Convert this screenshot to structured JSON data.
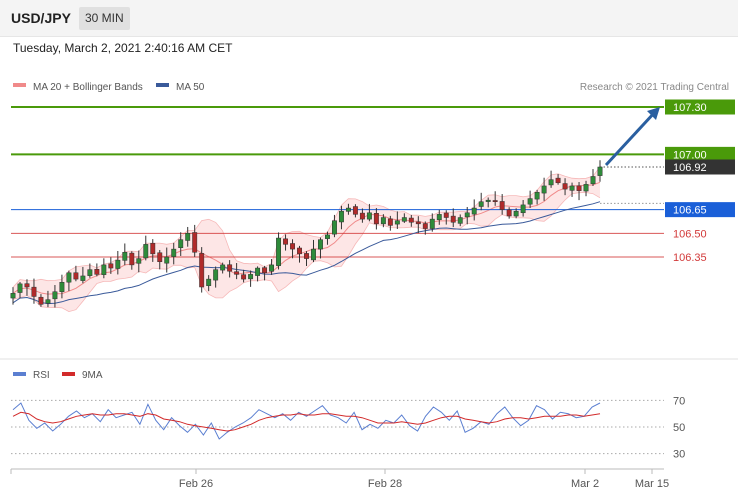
{
  "header": {
    "pair": "USD/JPY",
    "timeframe": "30 MIN"
  },
  "datetime": "Tuesday, March 2, 2021 2:40:16 AM CET",
  "credit": "Research © 2021 Trading Central",
  "legend": {
    "price": [
      {
        "label": "MA 20 + Bollinger Bands",
        "color": "#f08a8a"
      },
      {
        "label": "MA 50",
        "color": "#3a5a9a"
      }
    ],
    "rsi": [
      {
        "label": "RSI",
        "color": "#5b7fd1"
      },
      {
        "label": "9MA",
        "color": "#d22a2a"
      }
    ]
  },
  "chart_data": [
    {
      "type": "candlestick",
      "ylim": [
        106.0,
        107.4
      ],
      "levels": [
        {
          "value": 107.3,
          "label": "107.30",
          "kind": "resistance",
          "color": "#4a9a0a"
        },
        {
          "value": 107.0,
          "label": "107.00",
          "kind": "resistance",
          "color": "#4a9a0a"
        },
        {
          "value": 106.92,
          "label": "106.92",
          "kind": "last-price",
          "color": "#333333"
        },
        {
          "value": 106.65,
          "label": "106.65",
          "kind": "pivot",
          "color": "#1a5fd8"
        },
        {
          "value": 106.5,
          "label": "106.50",
          "kind": "support",
          "color": "#d23a3a"
        },
        {
          "value": 106.35,
          "label": "106.35",
          "kind": "support",
          "color": "#d23a3a"
        }
      ],
      "projection": {
        "from": 106.92,
        "to": 107.3
      },
      "x_ticks": [
        "Feb 26",
        "Feb 28",
        "Mar 2",
        "Mar 15"
      ],
      "close_path": [
        106.12,
        106.18,
        106.16,
        106.1,
        106.05,
        106.08,
        106.13,
        106.19,
        106.25,
        106.21,
        106.23,
        106.27,
        106.24,
        106.3,
        106.28,
        106.33,
        106.38,
        106.3,
        106.34,
        106.43,
        106.37,
        106.32,
        106.35,
        106.4,
        106.46,
        106.5,
        106.38,
        106.16,
        106.21,
        106.27,
        106.3,
        106.26,
        106.24,
        106.21,
        106.24,
        106.28,
        106.25,
        106.3,
        106.47,
        106.43,
        106.4,
        106.37,
        106.34,
        106.4,
        106.46,
        106.49,
        106.58,
        106.64,
        106.66,
        106.62,
        106.59,
        106.63,
        106.56,
        106.6,
        106.55,
        106.58,
        106.6,
        106.57,
        106.56,
        106.53,
        106.59,
        106.62,
        106.6,
        106.57,
        106.6,
        106.63,
        106.66,
        106.7,
        106.71,
        106.7,
        106.65,
        106.61,
        106.64,
        106.68,
        106.72,
        106.76,
        106.8,
        106.84,
        106.82,
        106.78,
        106.8,
        106.77,
        106.81,
        106.86,
        106.92
      ]
    },
    {
      "type": "line",
      "series": [
        {
          "name": "RSI",
          "values": [
            63,
            68,
            55,
            49,
            53,
            47,
            52,
            58,
            62,
            57,
            60,
            54,
            63,
            57,
            59,
            61,
            52,
            67,
            55,
            48,
            57,
            51,
            46,
            52,
            44,
            53,
            41,
            46,
            50,
            53,
            57,
            63,
            60,
            57,
            60,
            55,
            61,
            58,
            62,
            66,
            59,
            57,
            53,
            61,
            48,
            52,
            49,
            55,
            53,
            59,
            51,
            47,
            58,
            65,
            61,
            55,
            62,
            46,
            49,
            54,
            52,
            60,
            65,
            57,
            51,
            55,
            66,
            63,
            56,
            61,
            60,
            57,
            58,
            65,
            68
          ]
        },
        {
          "name": "9MA",
          "values": [
            58,
            61,
            60,
            56,
            54,
            53,
            54,
            56,
            58,
            59,
            60,
            59,
            59,
            60,
            60,
            59,
            58,
            60,
            59,
            56,
            55,
            54,
            52,
            51,
            50,
            49,
            48,
            47,
            48,
            50,
            52,
            55,
            57,
            58,
            59,
            59,
            60,
            59,
            59,
            60,
            60,
            59,
            58,
            58,
            57,
            55,
            53,
            53,
            53,
            54,
            53,
            52,
            53,
            55,
            57,
            58,
            58,
            56,
            55,
            54,
            53,
            54,
            56,
            57,
            57,
            56,
            57,
            58,
            58,
            58,
            59,
            59,
            58,
            59,
            60
          ]
        }
      ],
      "ylim": [
        20,
        80
      ],
      "levels": [
        {
          "value": 70,
          "label": "70"
        },
        {
          "value": 50,
          "label": "50"
        },
        {
          "value": 30,
          "label": "30"
        }
      ]
    }
  ]
}
